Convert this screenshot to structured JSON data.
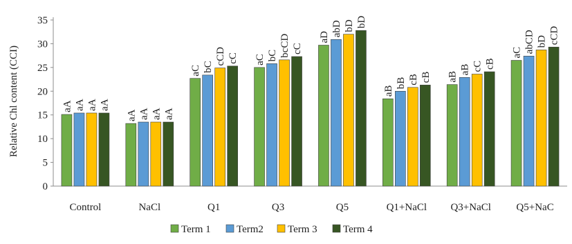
{
  "chart_data": {
    "type": "bar",
    "xlabel": "",
    "ylabel": "Relative Chl content (CCI)",
    "ylim": [
      0,
      35
    ],
    "yticks": [
      0,
      5,
      10,
      15,
      20,
      25,
      30,
      35
    ],
    "grid": false,
    "legend_position": "bottom",
    "categories": [
      "Control",
      "NaCl",
      "Q1",
      "Q3",
      "Q5",
      "Q1+NaCl",
      "Q3+NaCl",
      "Q5+NaC"
    ],
    "series": [
      {
        "name": "Term 1",
        "color": "#70AD47",
        "values": [
          15.1,
          13.2,
          22.7,
          25.0,
          29.7,
          18.4,
          21.4,
          26.5
        ],
        "labels": [
          "aA",
          "aA",
          "aC",
          "aC",
          "aD",
          "aB",
          "aB",
          "aC"
        ]
      },
      {
        "name": "Term2",
        "color": "#5B9BD5",
        "values": [
          15.4,
          13.5,
          23.4,
          25.8,
          30.9,
          20.0,
          22.9,
          27.4
        ],
        "labels": [
          "aA",
          "aA",
          "bC",
          "bC",
          "abD",
          "bB",
          "aB",
          "abCD"
        ]
      },
      {
        "name": "Term 3",
        "color": "#FFC000",
        "values": [
          15.4,
          13.5,
          24.9,
          26.6,
          32.0,
          20.8,
          23.6,
          28.7
        ],
        "labels": [
          "aA",
          "aA",
          "cCD",
          "bcCD",
          "bD",
          "cB",
          "cC",
          "bD"
        ]
      },
      {
        "name": "Term 4",
        "color": "#375623",
        "values": [
          15.4,
          13.5,
          25.3,
          27.3,
          32.8,
          21.3,
          24.1,
          29.3
        ],
        "labels": [
          "aA",
          "aA",
          "cC",
          "cC",
          "bD",
          "cB",
          "cB",
          "cCD"
        ]
      }
    ]
  }
}
